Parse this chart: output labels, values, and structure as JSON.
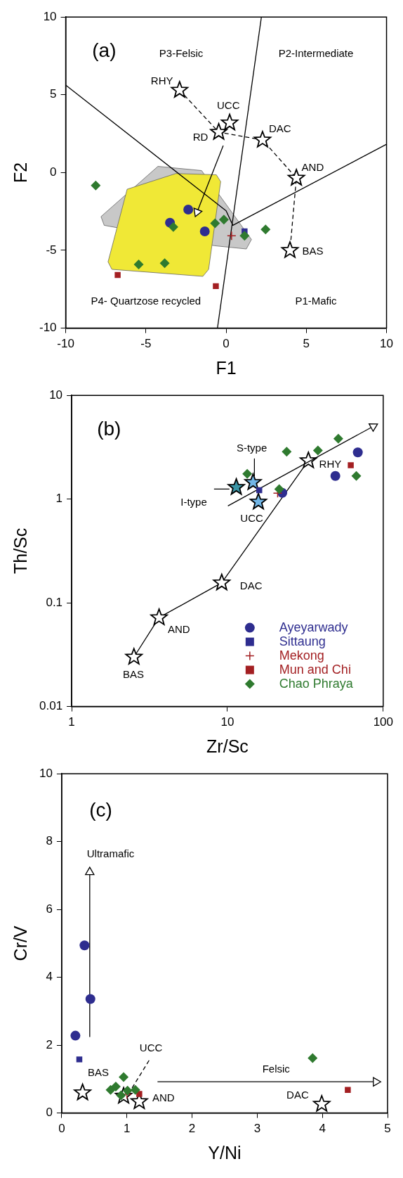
{
  "chart_data": [
    {
      "type": "scatter",
      "xlabel": "F1",
      "ylabel": "F2",
      "xlim": [
        -10,
        10
      ],
      "ylim": [
        -10,
        10
      ],
      "xticks": [
        -10,
        -5,
        0,
        5,
        10
      ],
      "yticks": [
        -10,
        -5,
        0,
        5,
        10
      ],
      "annotations": [
        "(a)",
        "P3-Felsic",
        "P2-Intermediate",
        "P4- Quartzose recycled",
        "P1-Mafic",
        "RHY",
        "UCC",
        "RD",
        "DAC",
        "AND",
        "BAS"
      ],
      "series": [
        {
          "type": "area",
          "color": "#c8c8c8",
          "x": [
            -7.8,
            -4.25,
            -1.53,
            -0.1,
            1.58,
            1.26,
            -0.73,
            -7.6,
            -7.8
          ],
          "values": [
            -2.83,
            0.4,
            0.13,
            -1.9,
            -4.3,
            -4.91,
            -4.7,
            -3.39,
            -2.83
          ]
        },
        {
          "type": "area",
          "color": "#f0e836",
          "x": [
            -6.17,
            -3.13,
            -0.61,
            -0.34,
            -1.09,
            -1.45,
            -7.12,
            -7.36,
            -6.17
          ],
          "values": [
            -1.07,
            -0.06,
            -0.14,
            -0.58,
            -6.22,
            -6.67,
            -6.22,
            -5.74,
            -1.07
          ]
        },
        {
          "type": "line",
          "color": "#000000",
          "x": [
            -10,
            0,
            0.42,
            10
          ],
          "values": [
            5.62,
            -2.46,
            -3.39,
            1.82
          ]
        },
        {
          "type": "line",
          "color": "#000000",
          "x": [
            2.2,
            -0.54
          ],
          "values": [
            10,
            -10
          ]
        },
        {
          "type": "line",
          "color": "#000000",
          "colors": [
            "#ffffff",
            "#ffffff",
            "#ffffff",
            "#ffffff",
            "#ffffff"
          ],
          "marker": "star",
          "line_style": "dashed",
          "x": [
            -2.9,
            -0.46,
            2.27,
            4.38,
            3.98
          ],
          "values": [
            5.3,
            2.6,
            2.1,
            -0.35,
            -5.0
          ]
        },
        {
          "type": "line",
          "color": "#000000",
          "marker": "triangle",
          "x": [
            -0.18,
            -1.81
          ],
          "values": [
            1.74,
            -2.54
          ]
        },
        {
          "type": "scatter",
          "color": "#ffffff",
          "marker": "star",
          "x": [
            0.22
          ],
          "values": [
            3.2
          ]
        },
        {
          "color": "#2e2d8f",
          "marker": "circle",
          "x": [
            -2.36,
            -3.5,
            -1.33
          ],
          "values": [
            -2.38,
            -3.22,
            -3.78
          ]
        },
        {
          "color": "#2e2d8f",
          "marker": "square",
          "x": [
            1.15
          ],
          "values": [
            -3.78
          ]
        },
        {
          "color": "#a31f22",
          "marker": "cross",
          "x": [
            0.34
          ],
          "values": [
            -4.06
          ]
        },
        {
          "color": "#a31f22",
          "marker": "square",
          "x": [
            -6.76,
            -0.64
          ],
          "values": [
            -6.58,
            -7.3
          ]
        },
        {
          "color": "#2f7a2f",
          "marker": "diamond",
          "x": [
            -8.13,
            -3.29,
            -0.69,
            -0.14,
            1.15,
            2.46,
            -5.45,
            -3.83
          ],
          "values": [
            -0.83,
            -3.5,
            -3.26,
            -3.02,
            -4.06,
            -3.66,
            -5.9,
            -5.82
          ]
        }
      ]
    },
    {
      "type": "scatter",
      "xlabel": "Zr/Sc",
      "ylabel": "Th/Sc",
      "log": "xy",
      "xlim": [
        1,
        100
      ],
      "ylim": [
        0.01,
        10
      ],
      "xticks": [
        1,
        10,
        100
      ],
      "yticks": [
        0.01,
        0.1,
        1,
        10
      ],
      "legend": "bottom right",
      "annotations": [
        "(b)",
        "S-type",
        "I-type",
        "UCC",
        "RHY",
        "DAC",
        "AND",
        "BAS"
      ],
      "series": [
        {
          "type": "line",
          "color": "#000000",
          "colors": [
            "#ffffff",
            "#ffffff",
            "#ffffff",
            "#ffffff"
          ],
          "marker": "star",
          "x": [
            2.51,
            3.64,
            9.19,
            33.1
          ],
          "values": [
            0.03,
            0.072,
            0.156,
            2.35
          ]
        },
        {
          "type": "line",
          "color": "#000000",
          "marker": "triangle",
          "x": [
            10.07,
            86.3
          ],
          "values": [
            0.86,
            5.03
          ]
        },
        {
          "type": "line",
          "color": "#000000",
          "x": [
            8.2,
            10.3
          ],
          "values": [
            1.25,
            1.25
          ]
        },
        {
          "type": "line",
          "color": "#000000",
          "x": [
            14.9,
            14.9
          ],
          "values": [
            2.45,
            1.67
          ]
        },
        {
          "type": "scatter",
          "colors": [
            "#3a95a6",
            "#72b6e6",
            "#72b6e6"
          ],
          "marker": "star",
          "x": [
            11.4,
            14.6,
            15.8
          ],
          "values": [
            1.3,
            1.45,
            0.94
          ]
        },
        {
          "name": "Ayeyarwady",
          "color": "#2e2d8f",
          "marker": "circle",
          "x": [
            22.5,
            49.3,
            68.7
          ],
          "values": [
            1.15,
            1.67,
            2.82
          ]
        },
        {
          "name": "Sittaung",
          "color": "#2e2d8f",
          "marker": "square",
          "x": [
            16.0
          ],
          "values": [
            1.22
          ]
        },
        {
          "name": "Mekong",
          "color": "#a31f22",
          "marker": "cross",
          "x": [
            21.0
          ],
          "values": [
            1.14
          ]
        },
        {
          "name": "Mun and Chi",
          "color": "#a31f22",
          "marker": "square",
          "x": [
            61.9
          ],
          "values": [
            2.12
          ]
        },
        {
          "name": "Chao Phraya",
          "color": "#2f7a2f",
          "marker": "diamond",
          "x": [
            13.4,
            21.5,
            24.0,
            38.1,
            51.5,
            67.2
          ],
          "values": [
            1.75,
            1.25,
            2.87,
            2.94,
            3.82,
            1.67
          ]
        }
      ]
    },
    {
      "type": "scatter",
      "xlabel": "Y/Ni",
      "ylabel": "Cr/V",
      "xlim": [
        0,
        5
      ],
      "ylim": [
        0,
        10
      ],
      "xticks": [
        0,
        1,
        2,
        3,
        4,
        5
      ],
      "yticks": [
        0,
        2,
        4,
        6,
        8,
        10
      ],
      "annotations": [
        "(c)",
        "Ultramafic",
        "Felsic",
        "BAS",
        "UCC",
        "AND",
        "DAC"
      ],
      "series": [
        {
          "type": "line",
          "color": "#000000",
          "marker": "triangle",
          "x": [
            0.43,
            0.43
          ],
          "values": [
            2.24,
            7.1
          ]
        },
        {
          "type": "line",
          "color": "#000000",
          "marker": "triangle",
          "x": [
            1.47,
            4.82
          ],
          "values": [
            0.92,
            0.92
          ]
        },
        {
          "type": "line",
          "color": "#000000",
          "line_style": "dashed",
          "x": [
            1.08,
            1.35
          ],
          "values": [
            0.74,
            1.58
          ]
        },
        {
          "type": "scatter",
          "color": "#ffffff",
          "marker": "star",
          "x": [
            0.32,
            0.95,
            1.19,
            3.99
          ],
          "values": [
            0.6,
            0.5,
            0.34,
            0.26
          ]
        },
        {
          "color": "#2e2d8f",
          "marker": "circle",
          "x": [
            0.35,
            0.44,
            0.21
          ],
          "values": [
            4.94,
            3.36,
            2.28
          ]
        },
        {
          "color": "#2e2d8f",
          "marker": "square",
          "x": [
            0.27
          ],
          "values": [
            1.58
          ]
        },
        {
          "color": "#a31f22",
          "marker": "cross",
          "x": [
            1.0
          ],
          "values": [
            0.55
          ]
        },
        {
          "color": "#a31f22",
          "marker": "square",
          "x": [
            1.19,
            4.39
          ],
          "values": [
            0.56,
            0.68
          ]
        },
        {
          "color": "#2f7a2f",
          "marker": "diamond",
          "x": [
            0.95,
            0.75,
            0.83,
            0.91,
            1.01,
            1.13,
            3.85
          ],
          "values": [
            1.06,
            0.68,
            0.78,
            0.52,
            0.66,
            0.68,
            1.62
          ]
        }
      ]
    }
  ]
}
